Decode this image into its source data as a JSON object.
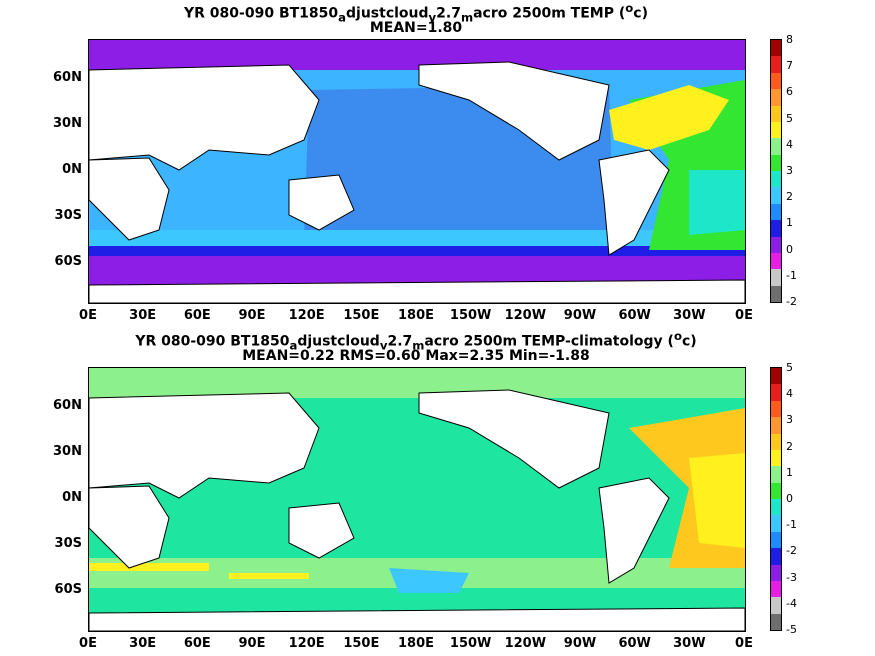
{
  "panels": [
    {
      "title_line1": {
        "a": "YR 080-090 BT1850",
        "sub1": "a",
        "b": "djustcloud",
        "sub2": "v",
        "c": "2.7",
        "sub3": "m",
        "d": "acro 2500m TEMP (",
        "sup": "o",
        "e": "c)"
      },
      "title_line2": "MEAN=1.80",
      "colorbar_labels": [
        "8",
        "7",
        "6",
        "5",
        "4",
        "3",
        "2",
        "1",
        "0",
        "-1",
        "-2"
      ]
    },
    {
      "title_line1": {
        "a": "YR 080-090 BT1850",
        "sub1": "a",
        "b": "djustcloud",
        "sub2": "v",
        "c": "2.7",
        "sub3": "m",
        "d": "acro 2500m TEMP-climatology (",
        "sup": "o",
        "e": "c)"
      },
      "title_line2": "MEAN=0.22   RMS=0.60   Max=2.35   Min=-1.88",
      "colorbar_labels": [
        "5",
        "4",
        "3",
        "2",
        "1",
        "0",
        "-1",
        "-2",
        "-3",
        "-4",
        "-5"
      ]
    }
  ],
  "lat_ticks": [
    "60N",
    "30N",
    "0N",
    "30S",
    "60S"
  ],
  "lon_ticks": [
    "0E",
    "30E",
    "60E",
    "90E",
    "120E",
    "150E",
    "180E",
    "150W",
    "120W",
    "90W",
    "60W",
    "30W",
    "0E"
  ],
  "colorbar_colors": [
    "#6e6e6e",
    "#c8c8c8",
    "#e61ee6",
    "#8c1ee6",
    "#1e1ee6",
    "#1e8cff",
    "#3cc8ff",
    "#1ee6c8",
    "#32e632",
    "#8cf08c",
    "#fff01e",
    "#ffc81e",
    "#ff9632",
    "#ff5a1e",
    "#e61e1e",
    "#a00000"
  ],
  "colors": {
    "land": "#ffffff",
    "coast": "#000000",
    "panel1_pacific": "#3c8cf0",
    "panel1_indian": "#3cb4ff",
    "panel1_southern": "#1e1ee6",
    "panel1_antarctic": "#8c1ee6",
    "panel1_atlantic": "#32e632",
    "panel1_gulf": "#fff01e",
    "panel2_main": "#1ee6a0",
    "panel2_southern": "#8cf08c",
    "panel2_gulf": "#ffc81e"
  }
}
